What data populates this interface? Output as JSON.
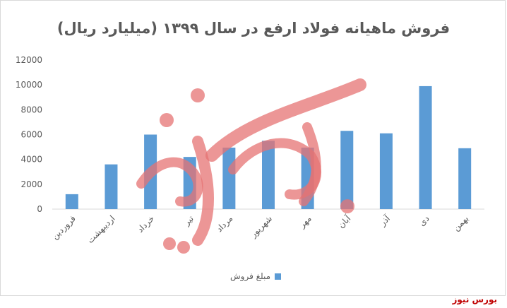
{
  "chart_data": {
    "type": "bar",
    "title": "فروش ماهیانه فولاد ارفع در سال ۱۳۹۹ (میلیارد ریال)",
    "categories": [
      "فروردین",
      "اردیبهشت",
      "خرداد",
      "تیر",
      "مرداد",
      "شهریور",
      "مهر",
      "آبان",
      "آذر",
      "دی",
      "بهمن"
    ],
    "series": [
      {
        "name": "مبلغ فروش",
        "values": [
          1200,
          3600,
          6000,
          4200,
          4950,
          5500,
          4950,
          6300,
          6100,
          9900,
          4900
        ]
      }
    ],
    "ylim": [
      0,
      12000
    ],
    "yticks": [
      "0",
      "2000",
      "4000",
      "6000",
      "8000",
      "10000",
      "12000"
    ],
    "grid": false,
    "legend": "bottom",
    "colors": {
      "bar": "#5b9bd5",
      "watermark": "#e57373"
    }
  },
  "brand": "بورس نیوز"
}
